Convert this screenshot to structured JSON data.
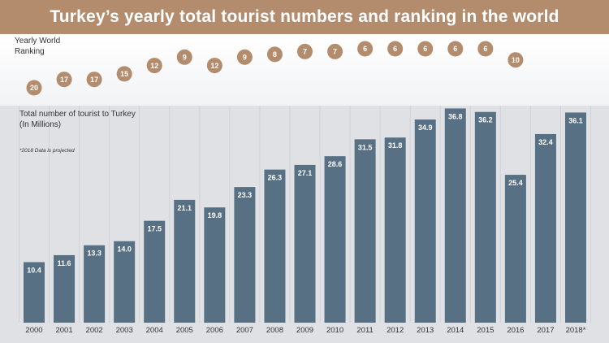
{
  "title": "Turkey’s yearly total tourist numbers and ranking in the world",
  "ranking_label": [
    "Yearly World",
    "Ranking"
  ],
  "chart_label": [
    "Total number of tourist to Turkey",
    "(In Millions)"
  ],
  "note": "*2018 Data is projected",
  "colors": {
    "title_bar": "#b38c6e",
    "bar": "#587083",
    "rank_circle": "#b38c6e"
  },
  "chart_data": {
    "type": "bar",
    "title": "Turkey’s yearly total tourist numbers and ranking in the world",
    "ylabel": "Total number of tourist to Turkey (In Millions)",
    "categories": [
      "2000",
      "2001",
      "2002",
      "2003",
      "2004",
      "2005",
      "2006",
      "2007",
      "2008",
      "2009",
      "2010",
      "2011",
      "2012",
      "2013",
      "2014",
      "2015",
      "2016",
      "2017",
      "2018*"
    ],
    "value_labels": [
      "10.4",
      "11.6",
      "13.3",
      "14.0",
      "17.5",
      "21.1",
      "19.8",
      "23.3",
      "26.3",
      "27.1",
      "28.6",
      "31.5",
      "31.8",
      "34.9",
      "36.8",
      "36.2",
      "25.4",
      "32.4",
      "36.1"
    ],
    "values": [
      10.4,
      11.6,
      13.3,
      14.0,
      17.5,
      21.1,
      19.8,
      23.3,
      26.3,
      27.1,
      28.6,
      31.5,
      31.8,
      34.9,
      36.8,
      36.2,
      25.4,
      32.4,
      36.1
    ],
    "rankings": [
      20,
      17,
      17,
      15,
      12,
      9,
      12,
      9,
      8,
      7,
      7,
      6,
      6,
      6,
      6,
      6,
      10
    ],
    "ylim": [
      0,
      37
    ],
    "grid": false,
    "legend": "none"
  }
}
